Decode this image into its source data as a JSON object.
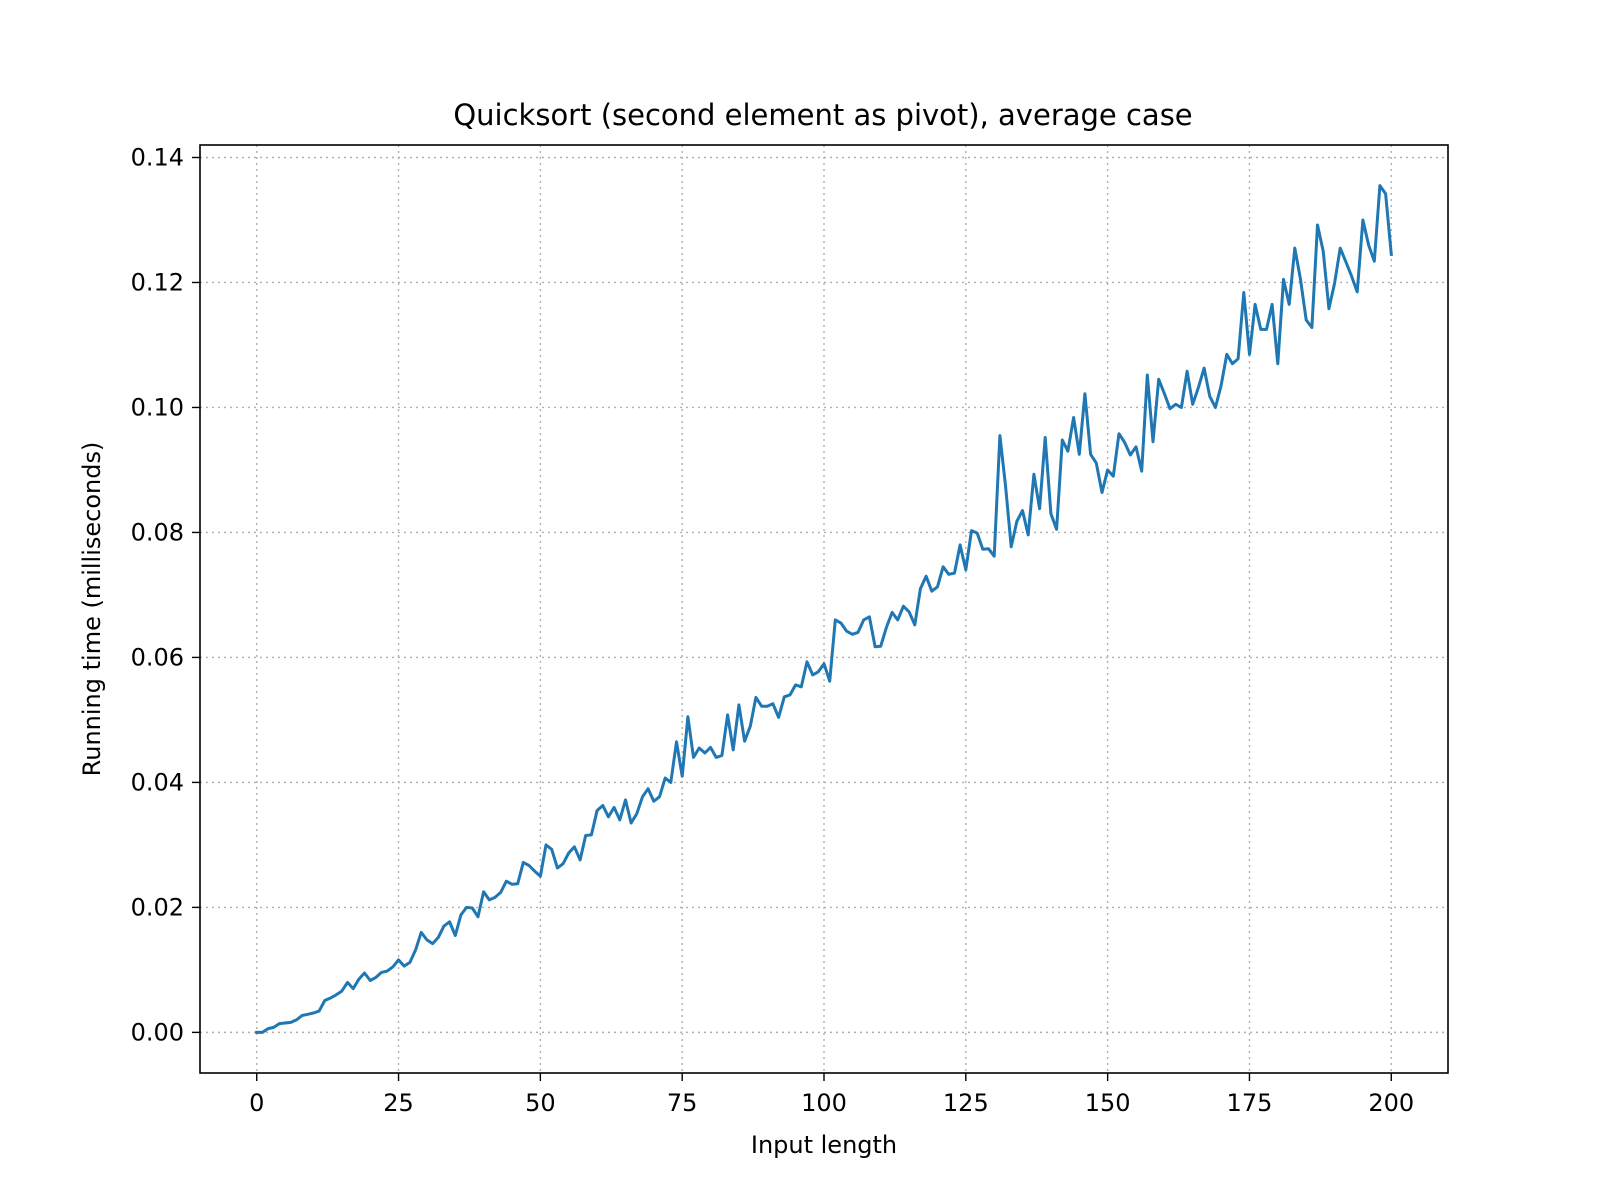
{
  "chart_data": {
    "type": "line",
    "title": "Quicksort (second element as pivot), average case",
    "xlabel": "Input length",
    "ylabel": "Running time (milliseconds)",
    "xlim": [
      -10,
      210
    ],
    "ylim": [
      -0.0065,
      0.142
    ],
    "xticks": [
      0,
      25,
      50,
      75,
      100,
      125,
      150,
      175,
      200
    ],
    "xtick_labels": [
      "0",
      "25",
      "50",
      "75",
      "100",
      "125",
      "150",
      "175",
      "200"
    ],
    "yticks": [
      0.0,
      0.02,
      0.04,
      0.06,
      0.08,
      0.1,
      0.12,
      0.14
    ],
    "ytick_labels": [
      "0.00",
      "0.02",
      "0.04",
      "0.06",
      "0.08",
      "0.10",
      "0.12",
      "0.14"
    ],
    "grid": true,
    "series": [
      {
        "color": "#1f77b4",
        "x": [
          0,
          1,
          2,
          3,
          4,
          5,
          6,
          7,
          8,
          9,
          10,
          11,
          12,
          13,
          14,
          15,
          16,
          17,
          18,
          19,
          20,
          21,
          22,
          23,
          24,
          25,
          26,
          27,
          28,
          29,
          30,
          31,
          32,
          33,
          34,
          35,
          36,
          37,
          38,
          39,
          40,
          41,
          42,
          43,
          44,
          45,
          46,
          47,
          48,
          49,
          50,
          51,
          52,
          53,
          54,
          55,
          56,
          57,
          58,
          59,
          60,
          61,
          62,
          63,
          64,
          65,
          66,
          67,
          68,
          69,
          70,
          71,
          72,
          73,
          74,
          75,
          76,
          77,
          78,
          79,
          80,
          81,
          82,
          83,
          84,
          85,
          86,
          87,
          88,
          89,
          90,
          91,
          92,
          93,
          94,
          95,
          96,
          97,
          98,
          99,
          100,
          101,
          102,
          103,
          104,
          105,
          106,
          107,
          108,
          109,
          110,
          111,
          112,
          113,
          114,
          115,
          116,
          117,
          118,
          119,
          120,
          121,
          122,
          123,
          124,
          125,
          126,
          127,
          128,
          129,
          130,
          131,
          132,
          133,
          134,
          135,
          136,
          137,
          138,
          139,
          140,
          141,
          142,
          143,
          144,
          145,
          146,
          147,
          148,
          149,
          150,
          151,
          152,
          153,
          154,
          155,
          156,
          157,
          158,
          159,
          160,
          161,
          162,
          163,
          164,
          165,
          166,
          167,
          168,
          169,
          170,
          171,
          172,
          173,
          174,
          175,
          176,
          177,
          178,
          179,
          180,
          181,
          182,
          183,
          184,
          185,
          186,
          187,
          188,
          189,
          190,
          191,
          192,
          193,
          194,
          195,
          196,
          197,
          198,
          199,
          200
        ],
        "y": [
          0.0,
          0.0,
          0.0006,
          0.0008,
          0.0014,
          0.0015,
          0.0016,
          0.002,
          0.0027,
          0.0029,
          0.0031,
          0.0034,
          0.0051,
          0.0055,
          0.006,
          0.0066,
          0.008,
          0.007,
          0.0085,
          0.0095,
          0.0083,
          0.0088,
          0.0096,
          0.0098,
          0.0105,
          0.0116,
          0.0106,
          0.0112,
          0.0132,
          0.016,
          0.0148,
          0.0142,
          0.0152,
          0.017,
          0.0177,
          0.0155,
          0.0188,
          0.02,
          0.0199,
          0.0185,
          0.0225,
          0.0212,
          0.0216,
          0.0224,
          0.0242,
          0.0237,
          0.0238,
          0.0272,
          0.0267,
          0.0258,
          0.025,
          0.03,
          0.0293,
          0.0263,
          0.027,
          0.0287,
          0.0297,
          0.0276,
          0.0315,
          0.0316,
          0.0355,
          0.0363,
          0.0345,
          0.036,
          0.034,
          0.0372,
          0.0335,
          0.035,
          0.0377,
          0.039,
          0.037,
          0.0377,
          0.0407,
          0.04,
          0.0465,
          0.041,
          0.0505,
          0.044,
          0.0455,
          0.0447,
          0.0456,
          0.044,
          0.0443,
          0.0508,
          0.0452,
          0.0524,
          0.0466,
          0.049,
          0.0536,
          0.0522,
          0.0522,
          0.0526,
          0.0504,
          0.0537,
          0.054,
          0.0556,
          0.0553,
          0.0593,
          0.0572,
          0.0577,
          0.059,
          0.0562,
          0.066,
          0.0655,
          0.0642,
          0.0637,
          0.064,
          0.066,
          0.0665,
          0.0617,
          0.0618,
          0.0648,
          0.0672,
          0.066,
          0.0682,
          0.0673,
          0.0652,
          0.071,
          0.073,
          0.0706,
          0.0713,
          0.0745,
          0.0733,
          0.0735,
          0.078,
          0.074,
          0.0803,
          0.0799,
          0.0773,
          0.0774,
          0.0762,
          0.0955,
          0.0875,
          0.0777,
          0.0818,
          0.0835,
          0.0796,
          0.0893,
          0.0838,
          0.0952,
          0.083,
          0.0805,
          0.0948,
          0.093,
          0.0984,
          0.0925,
          0.1022,
          0.0925,
          0.0911,
          0.0864,
          0.09,
          0.089,
          0.0958,
          0.0944,
          0.0924,
          0.0937,
          0.0898,
          0.1052,
          0.0945,
          0.1045,
          0.1022,
          0.0998,
          0.1005,
          0.1,
          0.1058,
          0.1005,
          0.1032,
          0.1063,
          0.1018,
          0.1,
          0.1035,
          0.1085,
          0.107,
          0.1078,
          0.1184,
          0.1085,
          0.1165,
          0.1125,
          0.1125,
          0.1165,
          0.107,
          0.1205,
          0.1165,
          0.1255,
          0.1205,
          0.114,
          0.1128,
          0.1292,
          0.125,
          0.1158,
          0.1198,
          0.1255,
          0.1233,
          0.121,
          0.1185,
          0.13,
          0.126,
          0.1234,
          0.1355,
          0.1342,
          0.1245
        ]
      }
    ]
  }
}
